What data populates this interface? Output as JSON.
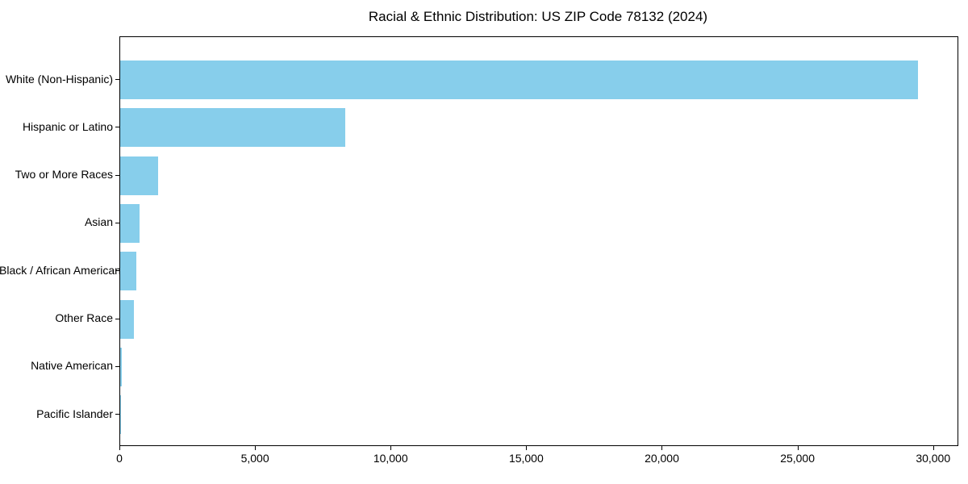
{
  "chart_data": {
    "type": "bar",
    "orientation": "horizontal",
    "title": "Racial & Ethnic Distribution: US ZIP Code 78132 (2024)",
    "categories": [
      "White (Non-Hispanic)",
      "Hispanic or Latino",
      "Two or More Races",
      "Asian",
      "Black / African American",
      "Other Race",
      "Native American",
      "Pacific Islander"
    ],
    "values": [
      29400,
      8300,
      1400,
      700,
      600,
      500,
      50,
      10
    ],
    "xlabel": "",
    "ylabel": "",
    "xlim": [
      0,
      30870
    ],
    "xticks": [
      0,
      5000,
      10000,
      15000,
      20000,
      25000,
      30000
    ],
    "xtick_labels": [
      "0",
      "5,000",
      "10,000",
      "15,000",
      "20,000",
      "25,000",
      "30,000"
    ],
    "bar_color": "#87CEEB",
    "grid": false,
    "legend": false
  }
}
